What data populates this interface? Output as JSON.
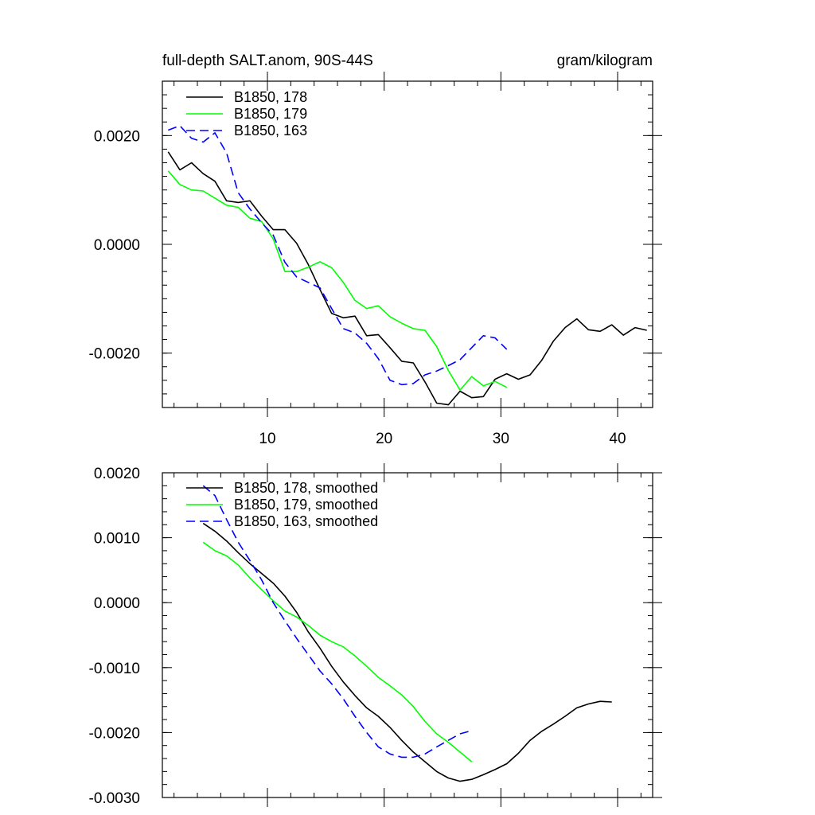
{
  "chart_data": [
    {
      "type": "line",
      "title": "full-depth SALT.anom, 90S-44S",
      "units": "gram/kilogram",
      "xlabel": "",
      "ylabel": "",
      "xlim": [
        1,
        43
      ],
      "ylim": [
        -0.003,
        0.003
      ],
      "x_ticks": [
        10,
        20,
        30,
        40
      ],
      "y_ticks": [
        0.002,
        0.0,
        -0.002
      ],
      "y_tick_labels": [
        "0.0020",
        "0.0000",
        "-0.0020"
      ],
      "legend_position": "top-left",
      "series": [
        {
          "name": "B1850, 178",
          "color": "#000000",
          "dash": "solid",
          "x": [
            1.5,
            2.5,
            3.5,
            4.5,
            5.5,
            6.5,
            7.5,
            8.5,
            9.5,
            10.5,
            11.5,
            12.5,
            13.5,
            14.5,
            15.5,
            16.5,
            17.5,
            18.5,
            19.5,
            20.5,
            21.5,
            22.5,
            23.5,
            24.5,
            25.5,
            26.5,
            27.5,
            28.5,
            29.5,
            30.5,
            31.5,
            32.5,
            33.5,
            34.5,
            35.5,
            36.5,
            37.5,
            38.5,
            39.5,
            40.5,
            41.5,
            42.5
          ],
          "y": [
            0.0017,
            0.00137,
            0.0015,
            0.0013,
            0.00116,
            0.0008,
            0.00077,
            0.0008,
            0.00052,
            0.00027,
            0.00027,
            2e-05,
            -0.00037,
            -0.00083,
            -0.00127,
            -0.00135,
            -0.00132,
            -0.00168,
            -0.00166,
            -0.0019,
            -0.00215,
            -0.00218,
            -0.00253,
            -0.00292,
            -0.00295,
            -0.0027,
            -0.00282,
            -0.0028,
            -0.00248,
            -0.00238,
            -0.00248,
            -0.0024,
            -0.00213,
            -0.00178,
            -0.00153,
            -0.00137,
            -0.00157,
            -0.0016,
            -0.00148,
            -0.00167,
            -0.00153,
            -0.00158
          ]
        },
        {
          "name": "B1850, 179",
          "color": "#00ff00",
          "dash": "solid",
          "x": [
            1.5,
            2.5,
            3.5,
            4.5,
            5.5,
            6.5,
            7.5,
            8.5,
            9.5,
            10.5,
            11.5,
            12.5,
            13.5,
            14.5,
            15.5,
            16.5,
            17.5,
            18.5,
            19.5,
            20.5,
            21.5,
            22.5,
            23.5,
            24.5,
            25.5,
            26.5,
            27.5,
            28.5,
            29.5,
            30.5
          ],
          "y": [
            0.00135,
            0.0011,
            0.001,
            0.00098,
            0.00085,
            0.00072,
            0.00068,
            0.00048,
            0.00042,
            0.0001,
            -0.0005,
            -0.0005,
            -0.00042,
            -0.00032,
            -0.00043,
            -0.0007,
            -0.00103,
            -0.00118,
            -0.00113,
            -0.00133,
            -0.00145,
            -0.00155,
            -0.00158,
            -0.00188,
            -0.00232,
            -0.00268,
            -0.00243,
            -0.0026,
            -0.00252,
            -0.00263
          ]
        },
        {
          "name": "B1850, 163",
          "color": "#0000ff",
          "dash": "dashed",
          "x": [
            1.5,
            2.5,
            3.5,
            4.5,
            5.5,
            6.5,
            7.5,
            8.5,
            9.5,
            10.5,
            11.5,
            12.5,
            13.5,
            14.5,
            15.5,
            16.5,
            17.5,
            18.5,
            19.5,
            20.5,
            21.5,
            22.5,
            23.5,
            24.5,
            25.5,
            26.5,
            27.5,
            28.5,
            29.5,
            30.5
          ],
          "y": [
            0.0021,
            0.00218,
            0.00195,
            0.00188,
            0.00205,
            0.00168,
            0.00095,
            0.00065,
            0.0004,
            0.00017,
            -0.00033,
            -0.0006,
            -0.0007,
            -0.0008,
            -0.00118,
            -0.00155,
            -0.00163,
            -0.00182,
            -0.0021,
            -0.0025,
            -0.00258,
            -0.00256,
            -0.0024,
            -0.00233,
            -0.00223,
            -0.00212,
            -0.0019,
            -0.00168,
            -0.00172,
            -0.00193
          ]
        }
      ]
    },
    {
      "type": "line",
      "title": "",
      "xlabel": "",
      "ylabel": "",
      "xlim": [
        1,
        43
      ],
      "ylim": [
        -0.003,
        0.002
      ],
      "x_ticks": [
        10,
        20,
        30,
        40
      ],
      "y_ticks": [
        0.002,
        0.001,
        0.0,
        -0.001,
        -0.002,
        -0.003
      ],
      "y_tick_labels": [
        "0.0020",
        "0.0010",
        "0.0000",
        "-0.0010",
        "-0.0020",
        "-0.0030"
      ],
      "legend_position": "top-left",
      "series": [
        {
          "name": "B1850, 178, smoothed",
          "color": "#000000",
          "dash": "solid",
          "x": [
            4.5,
            5.5,
            6.5,
            7.5,
            8.5,
            9.5,
            10.5,
            11.5,
            12.5,
            13.5,
            14.5,
            15.5,
            16.5,
            17.5,
            18.5,
            19.5,
            20.5,
            21.5,
            22.5,
            23.5,
            24.5,
            25.5,
            26.5,
            27.5,
            28.5,
            29.5,
            30.5,
            31.5,
            32.5,
            33.5,
            34.5,
            35.5,
            36.5,
            37.5,
            38.5,
            39.5
          ],
          "y": [
            0.00122,
            0.0011,
            0.00095,
            0.00077,
            0.0006,
            0.00045,
            0.0003,
            0.0001,
            -0.00015,
            -0.00045,
            -0.0007,
            -0.00098,
            -0.00122,
            -0.00143,
            -0.00162,
            -0.00175,
            -0.00192,
            -0.00212,
            -0.0023,
            -0.00245,
            -0.0026,
            -0.0027,
            -0.00275,
            -0.00272,
            -0.00265,
            -0.00257,
            -0.00248,
            -0.00232,
            -0.00212,
            -0.00198,
            -0.00187,
            -0.00175,
            -0.00162,
            -0.00156,
            -0.00152,
            -0.00153
          ]
        },
        {
          "name": "B1850, 179, smoothed",
          "color": "#00ff00",
          "dash": "solid",
          "x": [
            4.5,
            5.5,
            6.5,
            7.5,
            8.5,
            9.5,
            10.5,
            11.5,
            12.5,
            13.5,
            14.5,
            15.5,
            16.5,
            17.5,
            18.5,
            19.5,
            20.5,
            21.5,
            22.5,
            23.5,
            24.5,
            25.5,
            26.5,
            27.5
          ],
          "y": [
            0.00093,
            0.0008,
            0.00072,
            0.00058,
            0.00038,
            0.0002,
            3e-05,
            -0.00013,
            -0.00022,
            -0.00035,
            -0.0005,
            -0.0006,
            -0.00068,
            -0.00082,
            -0.00098,
            -0.00115,
            -0.00128,
            -0.00142,
            -0.0016,
            -0.00183,
            -0.00202,
            -0.00215,
            -0.0023,
            -0.00245
          ]
        },
        {
          "name": "B1850, 163, smoothed",
          "color": "#0000ff",
          "dash": "dashed",
          "x": [
            4.5,
            5.5,
            6.5,
            7.5,
            8.5,
            9.5,
            10.5,
            11.5,
            12.5,
            13.5,
            14.5,
            15.5,
            16.5,
            17.5,
            18.5,
            19.5,
            20.5,
            21.5,
            22.5,
            23.5,
            24.5,
            25.5,
            26.5,
            27.5
          ],
          "y": [
            0.0018,
            0.00165,
            0.00128,
            0.00093,
            0.00065,
            0.00035,
            0.0,
            -0.00028,
            -0.00055,
            -0.0008,
            -0.00105,
            -0.00125,
            -0.00148,
            -0.00175,
            -0.002,
            -0.00222,
            -0.00233,
            -0.00238,
            -0.00238,
            -0.00233,
            -0.00222,
            -0.00212,
            -0.00202,
            -0.00197
          ]
        }
      ]
    }
  ]
}
